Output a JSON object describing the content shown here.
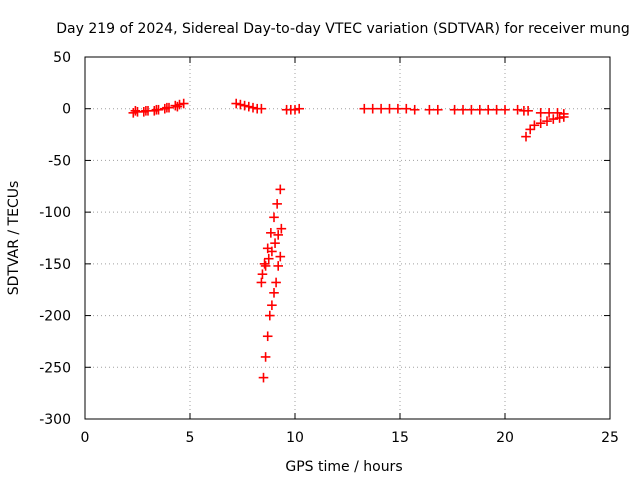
{
  "chart_data": {
    "type": "scatter",
    "title": "Day 219 of 2024, Sidereal Day-to-day VTEC variation (SDTVAR) for receiver mung",
    "xlabel": "GPS time / hours",
    "ylabel": "SDTVAR / TECUs",
    "xlim": [
      0,
      25
    ],
    "ylim": [
      -300,
      50
    ],
    "xticks": [
      0,
      5,
      10,
      15,
      20,
      25
    ],
    "yticks": [
      50,
      0,
      -50,
      -100,
      -150,
      -200,
      -250,
      -300
    ],
    "xtick_labels": [
      "0",
      "5",
      "10",
      "15",
      "20",
      "25"
    ],
    "ytick_labels": [
      "50",
      "0",
      "-50",
      "-100",
      "-150",
      "-200",
      "-250",
      "-300"
    ],
    "grid": true,
    "marker": "+",
    "series": [
      {
        "name": "sdtvar",
        "color": "#ff0000",
        "x": [
          2.3,
          2.5,
          2.8,
          3.0,
          3.3,
          3.5,
          3.8,
          4.0,
          4.3,
          4.5,
          4.7,
          2.4,
          2.9,
          3.4,
          3.9,
          4.4,
          7.2,
          7.4,
          7.6,
          7.8,
          8.0,
          8.2,
          8.4,
          9.6,
          9.8,
          10.0,
          10.2,
          13.3,
          13.7,
          14.1,
          14.5,
          14.9,
          15.3,
          15.7,
          16.4,
          16.8,
          17.6,
          18.0,
          18.4,
          18.8,
          19.2,
          19.6,
          20.0,
          20.6,
          20.9,
          21.1,
          21.7,
          22.1,
          22.5,
          22.8,
          21.0,
          21.2,
          21.4,
          21.7,
          22.0,
          22.3,
          22.6,
          22.8,
          8.4,
          8.55,
          8.7,
          8.85,
          9.0,
          9.15,
          9.3,
          8.45,
          8.6,
          8.75,
          8.9,
          9.05,
          9.2,
          9.35,
          8.5,
          8.6,
          8.7,
          8.8,
          8.9,
          9.0,
          9.1,
          9.2,
          9.3
        ],
        "y": [
          -4,
          -3,
          -3,
          -2,
          -2,
          -1,
          0,
          1,
          3,
          4,
          5,
          -2,
          -2,
          -1,
          1,
          2,
          5,
          4,
          3,
          2,
          1,
          0,
          0,
          -1,
          -1,
          -1,
          0,
          0,
          0,
          0,
          0,
          0,
          0,
          -1,
          -1,
          -1,
          -1,
          -1,
          -1,
          -1,
          -1,
          -1,
          -1,
          -1,
          -2,
          -2,
          -4,
          -4,
          -4,
          -5,
          -27,
          -20,
          -16,
          -14,
          -12,
          -10,
          -9,
          -8,
          -168,
          -150,
          -135,
          -120,
          -105,
          -92,
          -78,
          -160,
          -152,
          -145,
          -138,
          -130,
          -122,
          -116,
          -260,
          -240,
          -220,
          -200,
          -190,
          -178,
          -168,
          -152,
          -143
        ]
      }
    ]
  }
}
